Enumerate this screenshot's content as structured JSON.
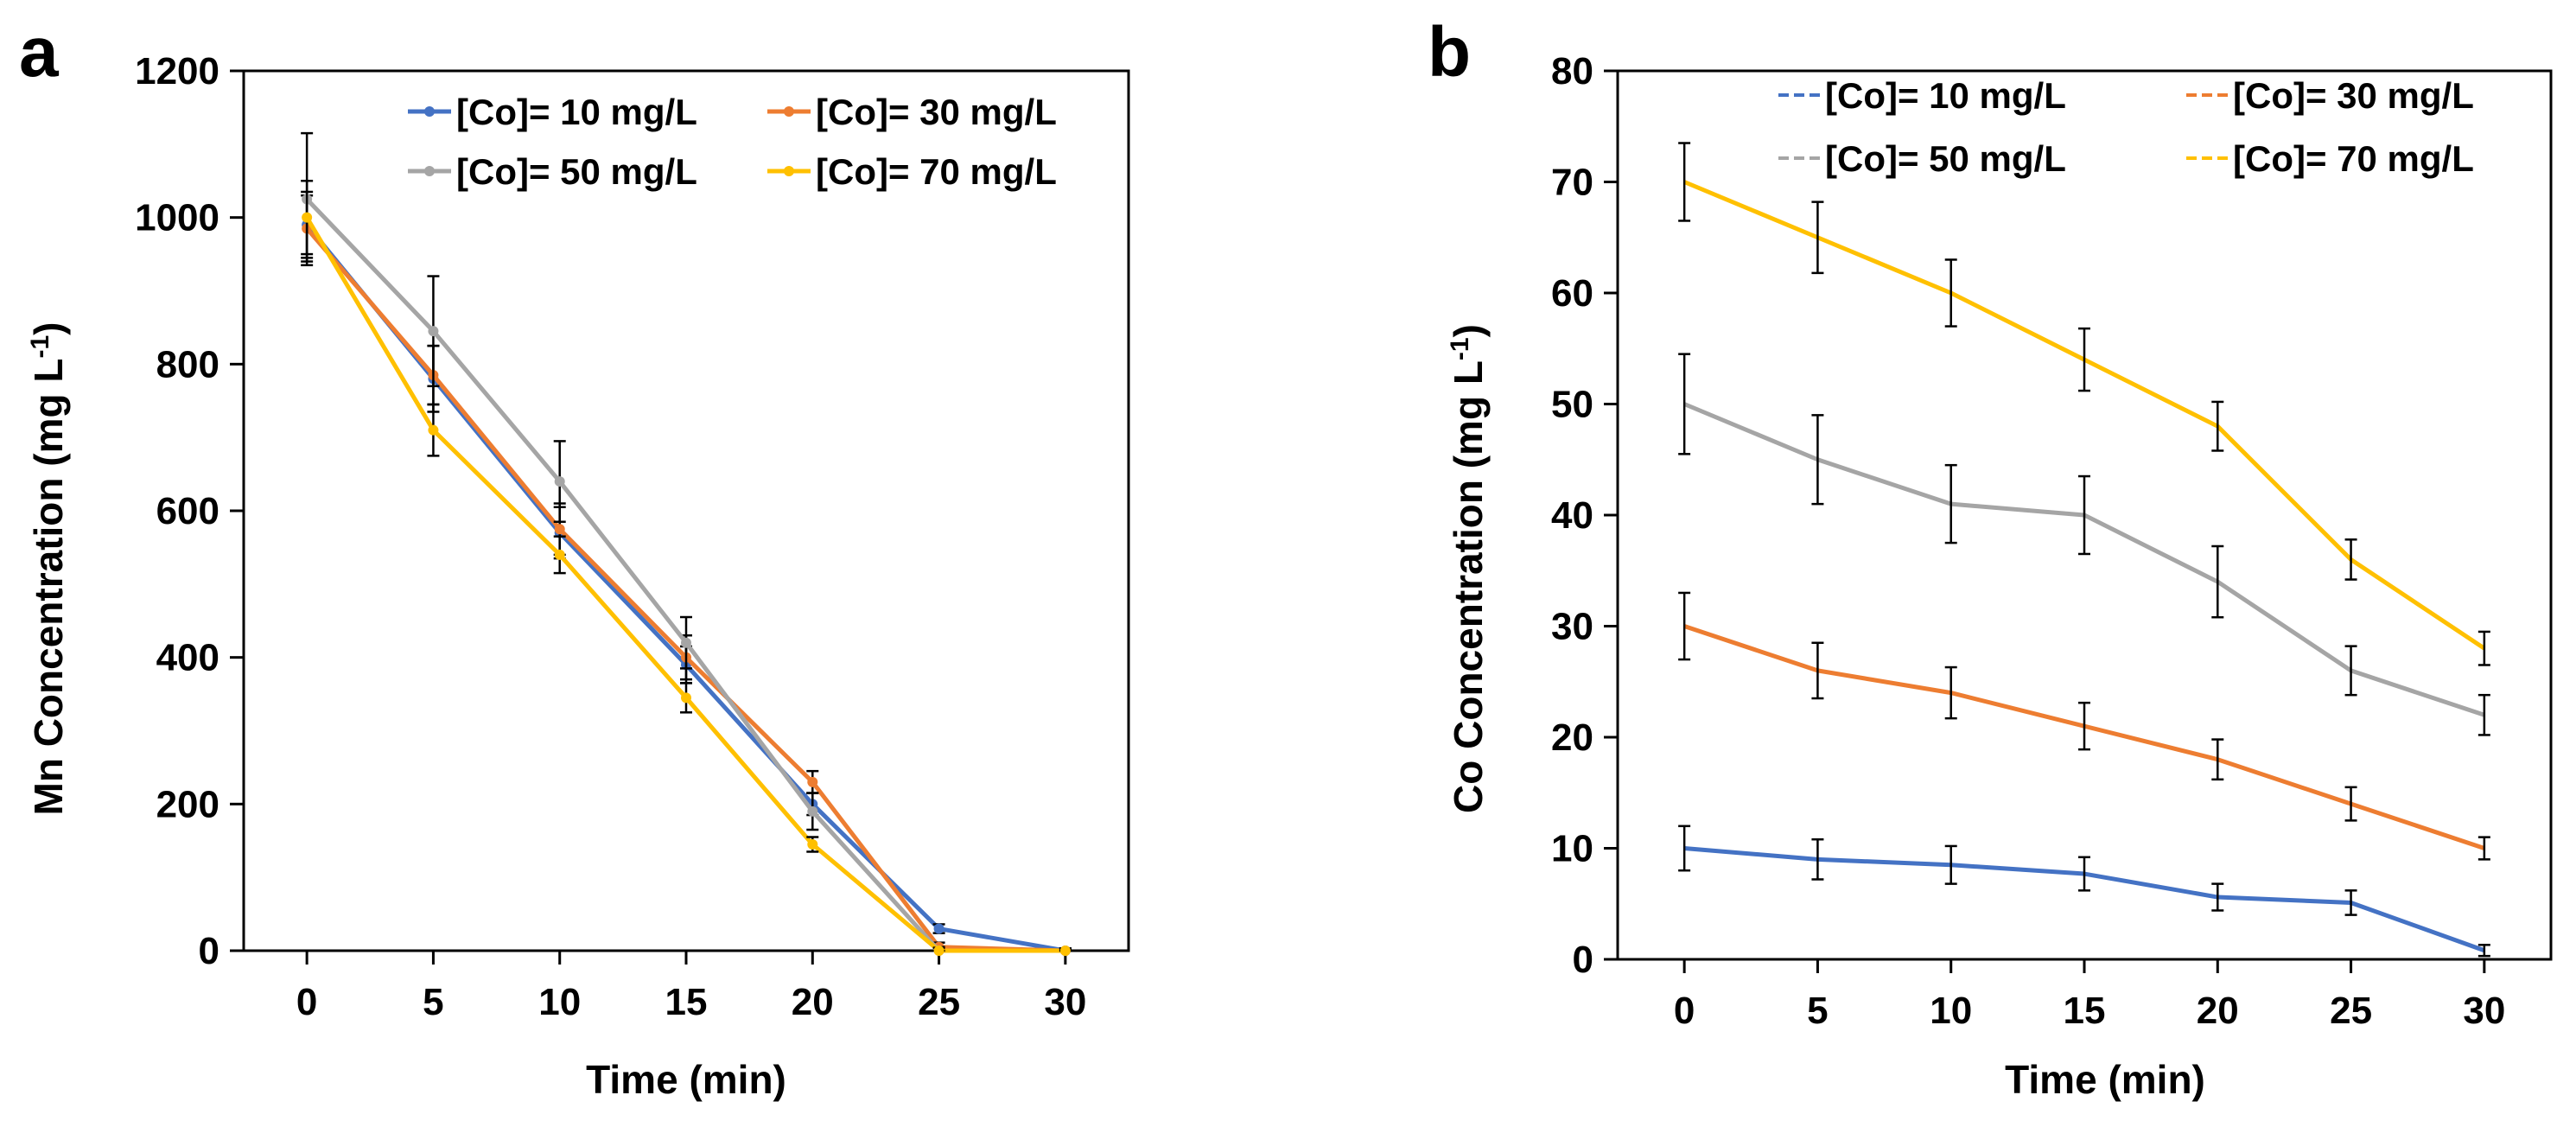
{
  "chart_data": [
    {
      "panel_label": "a",
      "type": "line",
      "xlabel": "Time (min)",
      "ylabel": "Mn Concentration (mg L",
      "ylabel_sup": "-1",
      "ylabel_end": ")",
      "x": [
        0,
        5,
        10,
        15,
        20,
        25,
        30
      ],
      "xlim": [
        -2.5,
        32.5
      ],
      "xticks": [
        "0",
        "5",
        "10",
        "15",
        "20",
        "25",
        "30"
      ],
      "ylim": [
        0,
        1200
      ],
      "yticks": [
        "0",
        "200",
        "400",
        "600",
        "800",
        "1000",
        "1200"
      ],
      "grid": false,
      "legend_position": "top-right",
      "series": [
        {
          "name": "[Co]= 10 mg/L",
          "color": "#4472C4",
          "marker": "dot",
          "values": [
            990,
            780,
            570,
            390,
            200,
            30,
            0
          ],
          "errors": [
            45,
            45,
            35,
            25,
            15,
            6,
            3
          ]
        },
        {
          "name": "[Co]= 30 mg/L",
          "color": "#ED7D31",
          "marker": "dot",
          "values": [
            985,
            785,
            575,
            400,
            230,
            5,
            0
          ],
          "errors": [
            45,
            40,
            35,
            30,
            15,
            6,
            3
          ]
        },
        {
          "name": "[Co]= 50 mg/L",
          "color": "#A5A5A5",
          "marker": "dot",
          "values": [
            1025,
            845,
            640,
            420,
            190,
            0,
            0
          ],
          "errors": [
            90,
            75,
            55,
            35,
            25,
            5,
            3
          ]
        },
        {
          "name": "[Co]= 70 mg/L",
          "color": "#FFC000",
          "marker": "dot",
          "values": [
            1000,
            710,
            540,
            345,
            145,
            0,
            0
          ],
          "errors": [
            50,
            35,
            25,
            20,
            10,
            4,
            3
          ]
        }
      ]
    },
    {
      "panel_label": "b",
      "type": "line",
      "xlabel": "Time (min)",
      "ylabel": "Co Concentration (mg L",
      "ylabel_sup": "-1",
      "ylabel_end": ")",
      "x": [
        0,
        5,
        10,
        15,
        20,
        25,
        30
      ],
      "xlim": [
        -2.5,
        32.5
      ],
      "xticks": [
        "0",
        "5",
        "10",
        "15",
        "20",
        "25",
        "30"
      ],
      "ylim": [
        0,
        80
      ],
      "yticks": [
        "0",
        "10",
        "20",
        "30",
        "40",
        "50",
        "60",
        "70",
        "80"
      ],
      "grid": false,
      "legend_position": "top",
      "series": [
        {
          "name": "[Co]= 10 mg/L",
          "color": "#4472C4",
          "marker": "dash",
          "values": [
            10,
            9,
            8.5,
            7.7,
            5.6,
            5.1,
            0.8
          ],
          "errors": [
            2,
            1.8,
            1.7,
            1.5,
            1.2,
            1.1,
            0.5
          ]
        },
        {
          "name": "[Co]= 30 mg/L",
          "color": "#ED7D31",
          "marker": "dash",
          "values": [
            30,
            26,
            24,
            21,
            18,
            14,
            10
          ],
          "errors": [
            3,
            2.5,
            2.3,
            2.1,
            1.8,
            1.5,
            1
          ]
        },
        {
          "name": "[Co]= 50 mg/L",
          "color": "#A5A5A5",
          "marker": "dash",
          "values": [
            50,
            45,
            41,
            40,
            34,
            26,
            22
          ],
          "errors": [
            4.5,
            4,
            3.5,
            3.5,
            3.2,
            2.2,
            1.8
          ]
        },
        {
          "name": "[Co]= 70 mg/L",
          "color": "#FFC000",
          "marker": "dash",
          "values": [
            70,
            65,
            60,
            54,
            48,
            36,
            28
          ],
          "errors": [
            3.5,
            3.2,
            3,
            2.8,
            2.2,
            1.8,
            1.5
          ]
        }
      ]
    }
  ]
}
